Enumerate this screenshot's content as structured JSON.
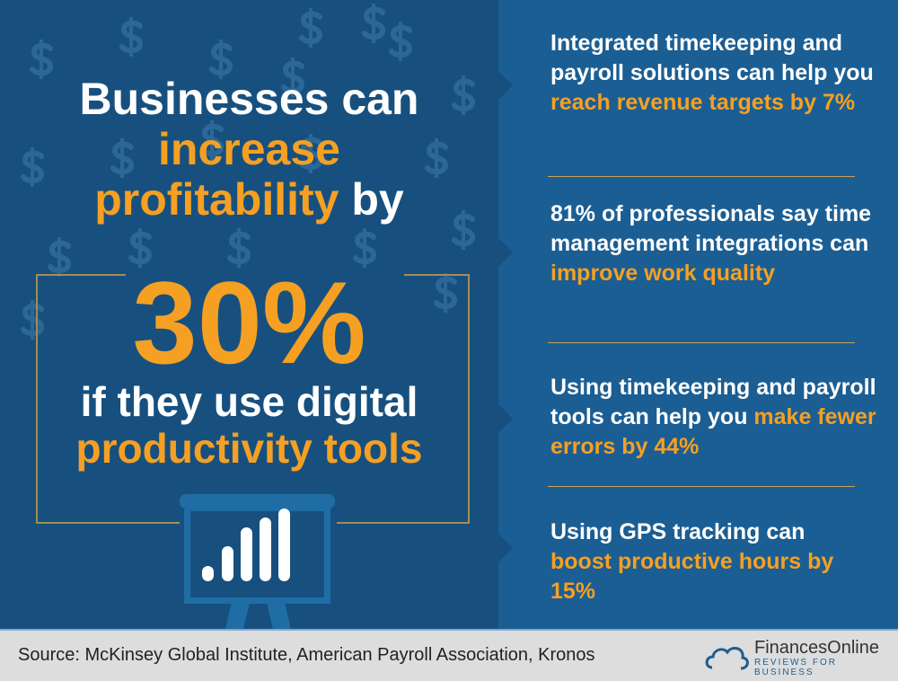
{
  "headline": {
    "line1": "Businesses can",
    "line2": "increase",
    "line3_accent": "profitability",
    "line3_plain": " by",
    "big_number": "30%",
    "line4": "if they use digital",
    "line5": "productivity tools"
  },
  "facts": [
    {
      "plain": "Integrated timekeeping and payroll solutions can help you ",
      "accent": "reach revenue targets by 7%"
    },
    {
      "plain": "81% of professionals say time management integrations can ",
      "accent": "improve work quality"
    },
    {
      "plain": "Using timekeeping and payroll tools can help you ",
      "accent": "make fewer errors by 44%"
    },
    {
      "plain": "Using GPS tracking can ",
      "accent": "boost productive hours by 15%"
    }
  ],
  "footer": {
    "source": "Source: McKinsey Global Institute, American Payroll Association, Kronos",
    "brand": "FinancesOnline",
    "tagline": "REVIEWS FOR BUSINESS"
  },
  "colors": {
    "accent": "#f5a023",
    "left_bg": "#17507f",
    "right_bg": "#1b5e93",
    "footer_bg": "#dddddd"
  },
  "icons": [
    "dollar-sign-icon",
    "presentation-chart-icon",
    "cloud-logo-icon"
  ]
}
